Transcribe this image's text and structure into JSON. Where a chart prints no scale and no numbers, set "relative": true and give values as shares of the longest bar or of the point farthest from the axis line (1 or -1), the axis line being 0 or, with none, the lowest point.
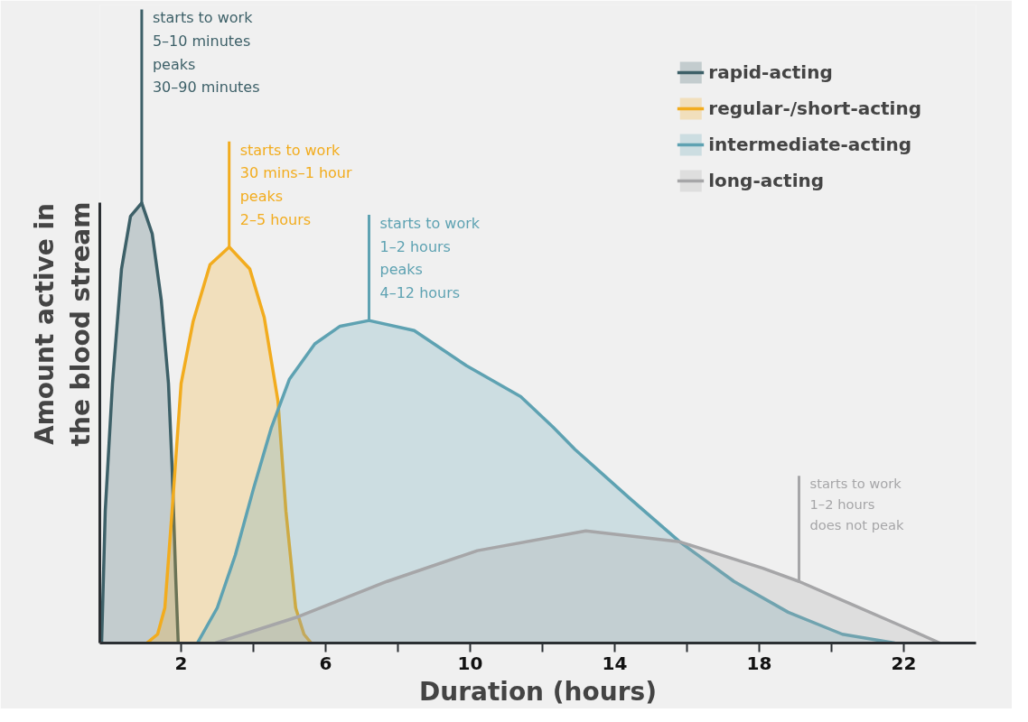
{
  "chart_data": {
    "type": "area",
    "relative": true,
    "xlabel": "Duration (hours)",
    "ylabel": "Amount active in\nthe blood stream",
    "xlim": [
      -0.25,
      24.0
    ],
    "xticks": [
      2,
      {
        "value": 4,
        "label": null
      },
      6,
      {
        "value": 8,
        "label": null
      },
      10,
      {
        "value": 12,
        "label": null
      },
      14,
      {
        "value": 16,
        "label": null
      },
      18,
      {
        "value": 20,
        "label": null
      },
      22
    ],
    "legend": "top right",
    "grid": false,
    "series": [
      {
        "name": "rapid-acting",
        "color": "#3d6068",
        "x": [
          -0.2,
          -0.1,
          0.1,
          0.35,
          0.6,
          0.91,
          1.2,
          1.45,
          1.65,
          1.75,
          1.85,
          1.92
        ],
        "values": [
          0,
          0.3,
          0.59,
          0.85,
          0.97,
          1.0,
          0.93,
          0.78,
          0.59,
          0.4,
          0.15,
          0
        ]
      },
      {
        "name": "regular-/short-acting",
        "color": "#f2ac1e",
        "x": [
          1.05,
          1.35,
          1.55,
          1.75,
          2.0,
          2.33,
          2.8,
          3.33,
          3.9,
          4.3,
          4.68,
          4.9,
          5.17,
          5.4,
          5.6
        ],
        "values": [
          0,
          0.02,
          0.08,
          0.3,
          0.59,
          0.73,
          0.86,
          0.9,
          0.85,
          0.74,
          0.55,
          0.3,
          0.08,
          0.02,
          0
        ]
      },
      {
        "name": "intermediate-acting",
        "color": "#5ea2b2",
        "x": [
          2.45,
          3.0,
          3.5,
          4.0,
          4.5,
          5.0,
          5.7,
          6.4,
          7.2,
          8.45,
          9.9,
          11.4,
          12.3,
          12.9,
          14.4,
          15.8,
          17.3,
          18.8,
          20.3,
          21.75
        ],
        "values": [
          0,
          0.08,
          0.2,
          0.35,
          0.49,
          0.6,
          0.68,
          0.72,
          0.733,
          0.71,
          0.63,
          0.56,
          0.49,
          0.44,
          0.33,
          0.23,
          0.14,
          0.07,
          0.02,
          0
        ]
      },
      {
        "name": "long-acting",
        "color": "#a6a6a8",
        "x": [
          2.95,
          5.25,
          7.7,
          10.2,
          13.2,
          15.8,
          18.1,
          19.1,
          20.5,
          21.9,
          23.0
        ],
        "values": [
          0,
          0.06,
          0.14,
          0.21,
          0.255,
          0.23,
          0.17,
          0.14,
          0.09,
          0.04,
          0
        ]
      }
    ],
    "annotations": [
      {
        "text": "starts to work\n5–10 minutes\npeaks\n30–90 minutes",
        "x": 0.91,
        "y": 1.0
      },
      {
        "text": "starts to work\n30 mins–1 hour\npeaks\n2–5 hours",
        "x": 3.33,
        "y": 0.9
      },
      {
        "text": "starts to work\n1–2 hours\npeaks\n4–12 hours",
        "x": 7.2,
        "y": 0.733
      },
      {
        "text": "starts to work\n1–2 hours\ndoes not peak",
        "x": 19.1,
        "y": 0.14
      }
    ]
  }
}
